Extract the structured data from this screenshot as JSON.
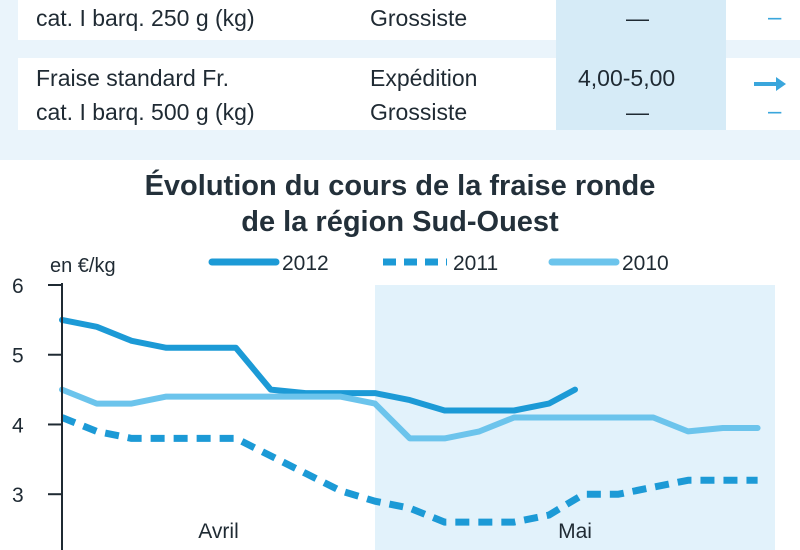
{
  "table": {
    "rows": [
      {
        "product_line1": "",
        "product_line2": "cat. I barq. 250 g (kg)",
        "stage_line1": "",
        "stage_line2": "Grossiste",
        "price_line1": "",
        "price_line2": "—",
        "trend_line1": "",
        "trend_line2": "–"
      },
      {
        "product_line1": "Fraise standard Fr.",
        "product_line2": "cat. I barq. 500 g (kg)",
        "stage_line1": "Expédition",
        "stage_line2": "Grossiste",
        "price_line1": "4,00-5,00",
        "price_line2": "—",
        "trend_line1": "arrow-right-icon",
        "trend_line2": "–"
      }
    ]
  },
  "chart_data": {
    "type": "line",
    "title": "Évolution du cours de la fraise ronde de la région Sud-Ouest",
    "title_line1": "Évolution du cours de la fraise ronde",
    "title_line2": "de la région Sud-Ouest",
    "ylabel": "en €/kg",
    "ylim": [
      2.2,
      6
    ],
    "yticks": [
      "6",
      "5",
      "4",
      "3"
    ],
    "xlim": [
      0,
      41
    ],
    "periods": [
      {
        "label": "Avril",
        "start": 0,
        "end": 18
      },
      {
        "label": "Mai",
        "start": 18,
        "end": 41
      }
    ],
    "legend_position": "top",
    "series": [
      {
        "name": "2012",
        "color": "#1c9ad6",
        "style": "solid",
        "x": [
          0,
          2,
          4,
          6,
          8,
          10,
          12,
          14,
          16,
          18,
          20,
          22,
          24,
          26,
          28,
          29.5
        ],
        "y": [
          5.5,
          5.4,
          5.2,
          5.1,
          5.1,
          5.1,
          4.5,
          4.45,
          4.45,
          4.45,
          4.35,
          4.2,
          4.2,
          4.2,
          4.3,
          4.5
        ]
      },
      {
        "name": "2011",
        "color": "#1c9ad6",
        "style": "dashed",
        "x": [
          0,
          2,
          4,
          6,
          8,
          10,
          12,
          14,
          16,
          18,
          20,
          22,
          24,
          26,
          28,
          30,
          32,
          34,
          36,
          38,
          40
        ],
        "y": [
          4.1,
          3.9,
          3.8,
          3.8,
          3.8,
          3.8,
          3.55,
          3.3,
          3.05,
          2.9,
          2.8,
          2.6,
          2.6,
          2.6,
          2.7,
          3.0,
          3.0,
          3.1,
          3.2,
          3.2,
          3.2
        ]
      },
      {
        "name": "2010",
        "color": "#6cc4ec",
        "style": "solid",
        "x": [
          0,
          2,
          4,
          6,
          8,
          10,
          12,
          14,
          16,
          18,
          20,
          22,
          24,
          26,
          28,
          30,
          32,
          34,
          36,
          38,
          40
        ],
        "y": [
          4.5,
          4.3,
          4.3,
          4.4,
          4.4,
          4.4,
          4.4,
          4.4,
          4.4,
          4.3,
          3.8,
          3.8,
          3.9,
          4.1,
          4.1,
          4.1,
          4.1,
          4.1,
          3.9,
          3.95,
          3.95
        ]
      }
    ]
  }
}
